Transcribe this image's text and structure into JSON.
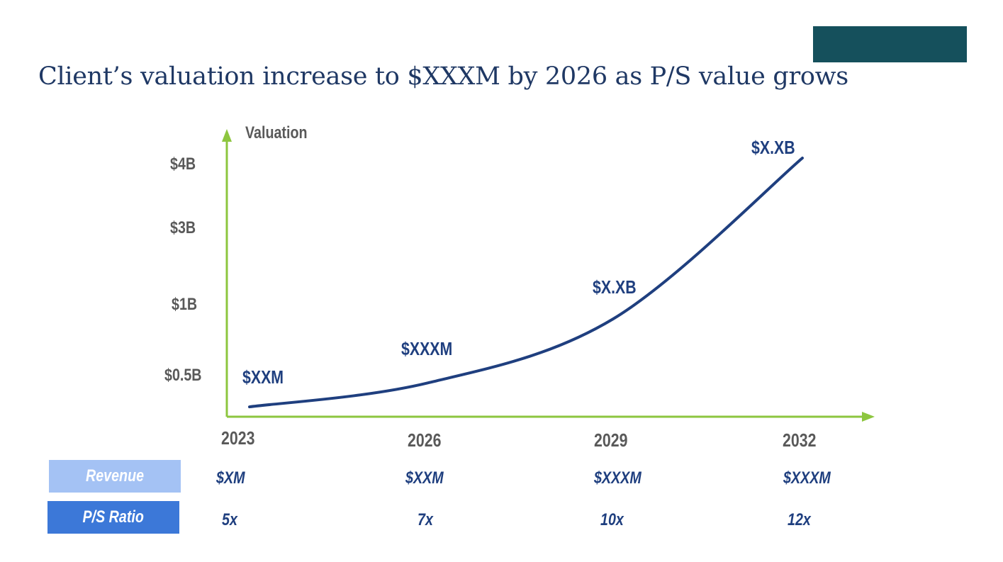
{
  "slide": {
    "title": "Client’s valuation increase to $XXXM by 2026 as P/S value grows",
    "brand_bar_color": "#15505c"
  },
  "chart_data": {
    "type": "line",
    "ylabel": "Valuation",
    "xlabel": "",
    "categories": [
      "2023",
      "2026",
      "2029",
      "2032"
    ],
    "y_ticks": [
      {
        "label": "$0.5B",
        "value": 0.5
      },
      {
        "label": "$1B",
        "value": 1
      },
      {
        "label": "$3B",
        "value": 3
      },
      {
        "label": "$4B",
        "value": 4
      }
    ],
    "y_scale": "non-linear",
    "series": [
      {
        "values": [
          0.12,
          0.41,
          0.9,
          4.1
        ],
        "color": "#1f3f7f"
      }
    ],
    "data_labels": [
      "$XXM",
      "$XXXM",
      "$X.XB",
      "$X.XB"
    ],
    "axis_color": "#8dc63f",
    "grid": false
  },
  "table": {
    "rows": [
      {
        "label": "Revenue",
        "color": "#a4c2f4",
        "values": [
          "$XM",
          "$XXM",
          "$XXXM",
          "$XXXM"
        ]
      },
      {
        "label": "P/S Ratio",
        "color": "#3c78d8",
        "values": [
          "5x",
          "7x",
          "10x",
          "12x"
        ]
      }
    ]
  }
}
